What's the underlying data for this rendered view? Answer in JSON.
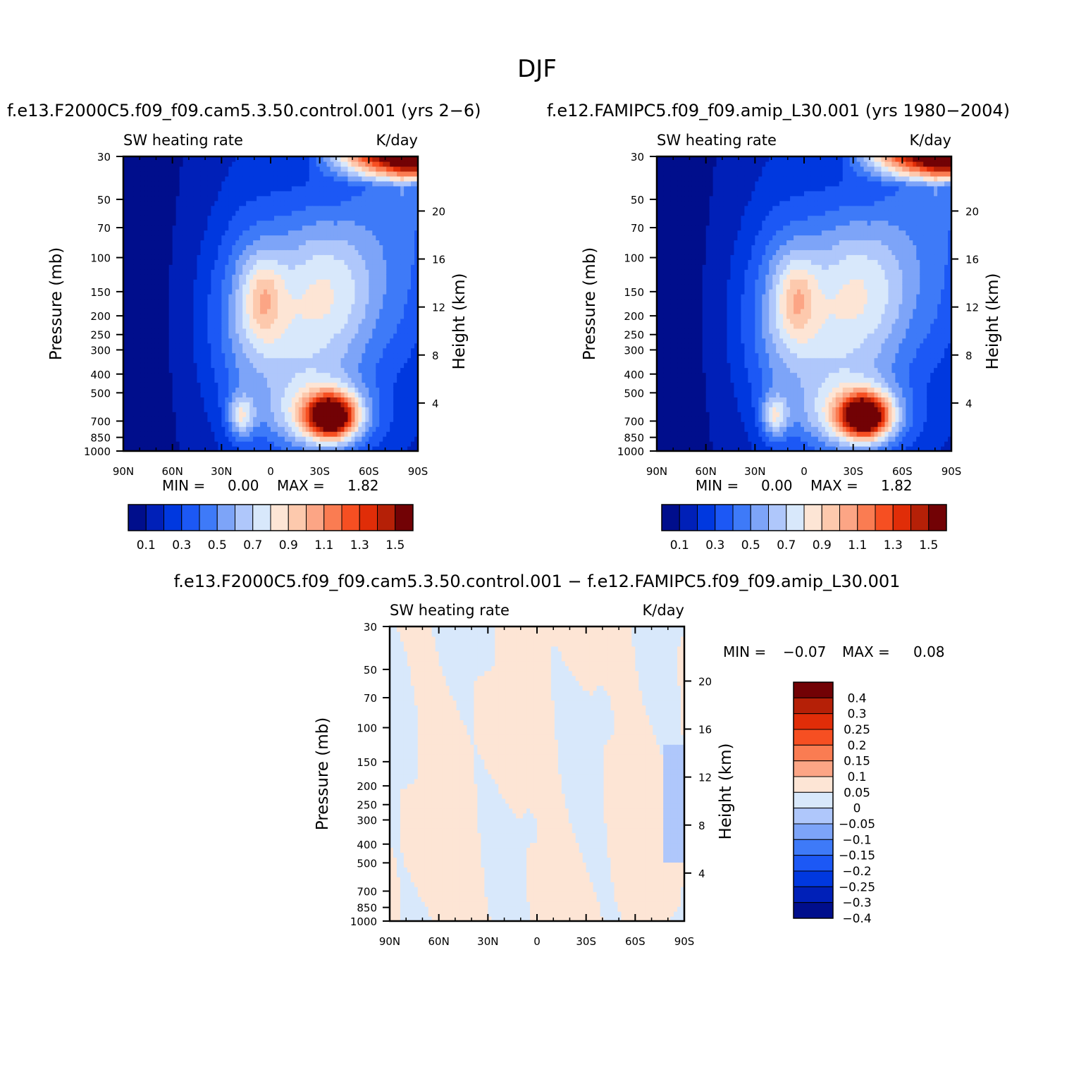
{
  "title": "DJF",
  "case1_title": "f.e13.F2000C5.f09_f09.cam5.3.50.control.001 (yrs 2−6)",
  "case2_title": "f.e12.FAMIPC5.f09_f09.amip_L30.001 (yrs 1980−2004)",
  "diff_title": "f.e13.F2000C5.f09_f09.cam5.3.50.control.001 − f.e12.FAMIPC5.f09_f09.amip_L30.001",
  "chart_data": [
    {
      "type": "heatmap",
      "panel": "control",
      "variable": "SW heating rate",
      "units": "K/day",
      "ylabel": "Pressure (mb)",
      "ylabel_right": "Height (km)",
      "x_ticks": [
        "90N",
        "60N",
        "30N",
        "0",
        "30S",
        "60S",
        "90S"
      ],
      "y_ticks": [
        "30",
        "50",
        "70",
        "100",
        "150",
        "200",
        "250",
        "300",
        "400",
        "500",
        "700",
        "850",
        "1000"
      ],
      "y_ticks_right": [
        "20",
        "16",
        "12",
        "8",
        "4"
      ],
      "min_label": "MIN =",
      "min": "0.00",
      "max_label": "MAX =",
      "max": "1.82",
      "colorbar_labels": [
        "0.1",
        "0.3",
        "0.5",
        "0.7",
        "0.9",
        "1.1",
        "1.3",
        "1.5"
      ]
    },
    {
      "type": "heatmap",
      "panel": "amip",
      "variable": "SW heating rate",
      "units": "K/day",
      "ylabel": "Pressure (mb)",
      "ylabel_right": "Height (km)",
      "x_ticks": [
        "90N",
        "60N",
        "30N",
        "0",
        "30S",
        "60S",
        "90S"
      ],
      "y_ticks": [
        "30",
        "50",
        "70",
        "100",
        "150",
        "200",
        "250",
        "300",
        "400",
        "500",
        "700",
        "850",
        "1000"
      ],
      "y_ticks_right": [
        "20",
        "16",
        "12",
        "8",
        "4"
      ],
      "min_label": "MIN =",
      "min": "0.00",
      "max_label": "MAX =",
      "max": "1.82",
      "colorbar_labels": [
        "0.1",
        "0.3",
        "0.5",
        "0.7",
        "0.9",
        "1.1",
        "1.3",
        "1.5"
      ]
    },
    {
      "type": "heatmap",
      "panel": "difference",
      "variable": "SW heating rate",
      "units": "K/day",
      "ylabel": "Pressure (mb)",
      "ylabel_right": "Height (km)",
      "x_ticks": [
        "90N",
        "60N",
        "30N",
        "0",
        "30S",
        "60S",
        "90S"
      ],
      "y_ticks": [
        "30",
        "50",
        "70",
        "100",
        "150",
        "200",
        "250",
        "300",
        "400",
        "500",
        "700",
        "850",
        "1000"
      ],
      "y_ticks_right": [
        "20",
        "16",
        "12",
        "8",
        "4"
      ],
      "min_label": "MIN =",
      "min": "−0.07",
      "max_label": "MAX =",
      "max": "0.08",
      "colorbar_labels": [
        "0.4",
        "0.3",
        "0.25",
        "0.2",
        "0.15",
        "0.1",
        "0.05",
        "0",
        "−0.05",
        "−0.1",
        "−0.15",
        "−0.2",
        "−0.25",
        "−0.3",
        "−0.4"
      ]
    }
  ],
  "colors": {
    "cool_to_warm": [
      "#000e8c",
      "#0020b8",
      "#0038df",
      "#1c58f5",
      "#3e7af8",
      "#7da4f8",
      "#afc7fb",
      "#d8e8fb",
      "#fde5d5",
      "#fdc9ad",
      "#fca585",
      "#fa7c52",
      "#f64f22",
      "#e02d08",
      "#b52007",
      "#720205"
    ],
    "diff_scale": [
      "#720205",
      "#b52007",
      "#e02d08",
      "#f64f22",
      "#fa7c52",
      "#fca585",
      "#fde5d5",
      "#d8e8fb",
      "#afc7fb",
      "#7da4f8",
      "#3e7af8",
      "#1c58f5",
      "#0038df",
      "#0020b8",
      "#000e8c"
    ]
  }
}
